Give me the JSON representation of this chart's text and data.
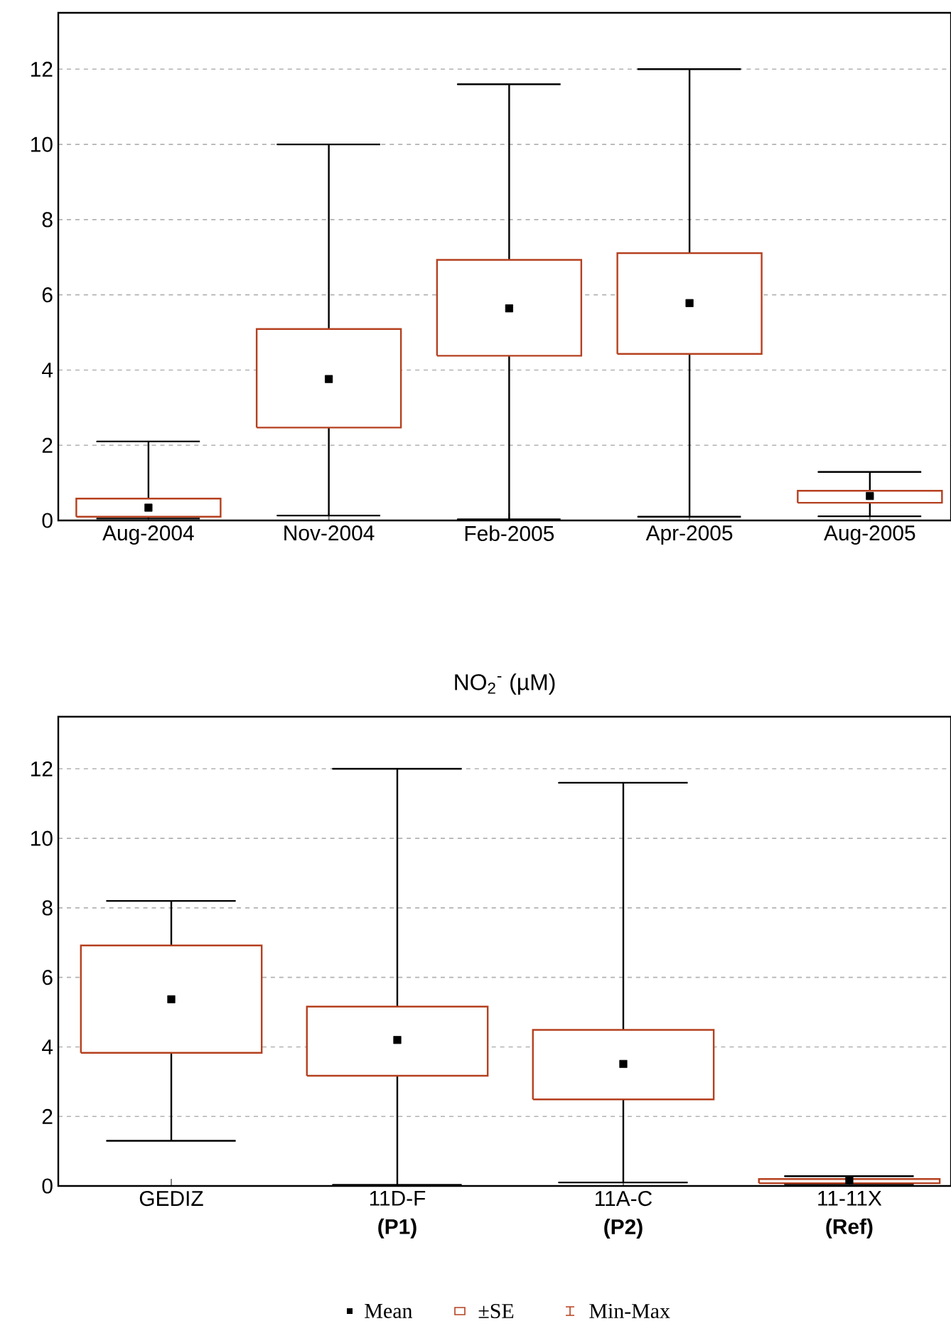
{
  "chart_data": [
    {
      "type": "box",
      "categories": [
        "Aug-2004",
        "Nov-2004",
        "Feb-2005",
        "Apr-2005",
        "Aug-2005"
      ],
      "series": [
        {
          "color": "#b5401f",
          "boxes": [
            {
              "low": 0.05,
              "q1": 0.1,
              "q3": 0.58,
              "high": 2.1,
              "mean": 0.34
            },
            {
              "low": 0.13,
              "q1": 2.47,
              "q3": 5.09,
              "high": 10,
              "mean": 3.76
            },
            {
              "low": 0.03,
              "q1": 4.38,
              "q3": 6.93,
              "high": 11.6,
              "mean": 5.64
            },
            {
              "low": 0.1,
              "q1": 4.43,
              "q3": 7.11,
              "high": 12,
              "mean": 5.78
            },
            {
              "low": 0.11,
              "q1": 0.47,
              "q3": 0.79,
              "high": 1.29,
              "mean": 0.65
            }
          ]
        }
      ],
      "ylim": [
        0,
        13.5
      ],
      "yticks": [
        0,
        2,
        4,
        6,
        8,
        10,
        12
      ],
      "grid": "y"
    },
    {
      "type": "box",
      "title": "NO$_{2}$$^{-}$ (µM)",
      "categories": [
        "GEDIZ",
        "11D-F **(P1)**",
        "11A-C **(P2)**",
        "11-11X **(Ref)**"
      ],
      "series": [
        {
          "color": "#b5401f",
          "boxes": [
            {
              "low": 1.3,
              "q1": 3.83,
              "q3": 6.92,
              "high": 8.2,
              "mean": 5.37
            },
            {
              "low": 0.03,
              "q1": 3.17,
              "q3": 5.16,
              "high": 12,
              "mean": 4.2
            },
            {
              "low": 0.1,
              "q1": 2.49,
              "q3": 4.49,
              "high": 11.6,
              "mean": 3.51
            },
            {
              "low": 0.05,
              "q1": 0.08,
              "q3": 0.2,
              "high": 0.28,
              "mean": 0.16
            }
          ]
        }
      ],
      "ylim": [
        0,
        13.5
      ],
      "yticks": [
        0,
        2,
        4,
        6,
        8,
        10,
        12
      ],
      "grid": "y",
      "annotations": [
        "Mean",
        "±SE",
        "Min-Max"
      ]
    }
  ]
}
